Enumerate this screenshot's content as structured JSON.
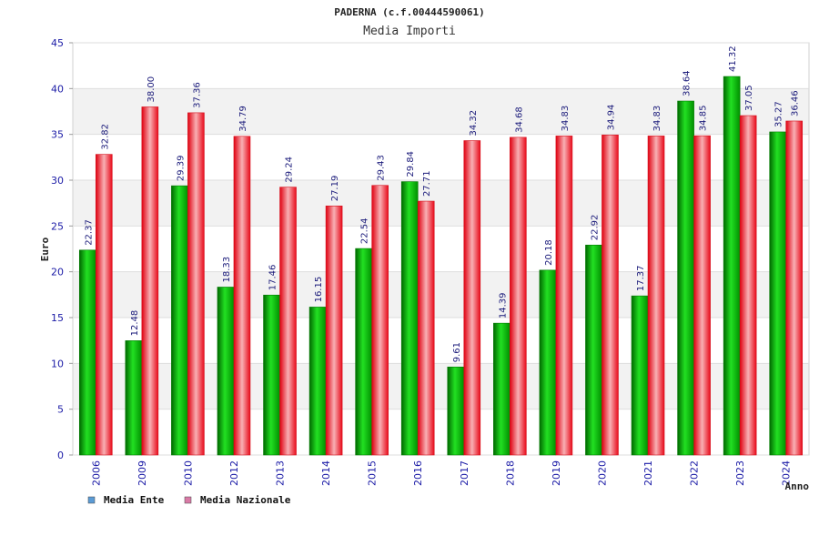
{
  "chart_data": {
    "type": "bar",
    "title": "PADERNA (c.f.00444590061)",
    "subtitle": "Media Importi",
    "xlabel": "Anno",
    "ylabel": "Euro",
    "ylim": [
      0,
      45
    ],
    "yticks": [
      0,
      5,
      10,
      15,
      20,
      25,
      30,
      35,
      40,
      45
    ],
    "grid": true,
    "legend_position": "bottom-left",
    "categories": [
      "2006",
      "2009",
      "2010",
      "2012",
      "2013",
      "2014",
      "2015",
      "2016",
      "2017",
      "2018",
      "2019",
      "2020",
      "2021",
      "2022",
      "2023",
      "2024"
    ],
    "series": [
      {
        "name": "Media Ente",
        "color": "#00b000",
        "legend_color": "#5b9bd5",
        "values": [
          22.37,
          12.48,
          29.39,
          18.33,
          17.46,
          16.15,
          22.54,
          29.84,
          9.61,
          14.39,
          20.18,
          22.92,
          17.37,
          38.64,
          41.32,
          35.27
        ],
        "labels": [
          "22.37",
          "12.48",
          "29.39",
          "18.33",
          "17.46",
          "16.15",
          "22.54",
          "29.84",
          "9.61",
          "14.39",
          "20.18",
          "22.92",
          "17.37",
          "38.64",
          "41.32",
          "35.27"
        ]
      },
      {
        "name": "Media Nazionale",
        "color": "#e8202a",
        "legend_color": "#d97aa6",
        "values": [
          32.82,
          38.0,
          37.36,
          34.79,
          29.24,
          27.19,
          29.43,
          27.71,
          34.32,
          34.68,
          34.83,
          34.94,
          34.83,
          34.85,
          37.05,
          36.46
        ],
        "labels": [
          "32.82",
          "38.00",
          "37.36",
          "34.79",
          "29.24",
          "27.19",
          "29.43",
          "27.71",
          "34.32",
          "34.68",
          "34.83",
          "34.94",
          "34.83",
          "34.85",
          "37.05",
          "36.46"
        ]
      }
    ]
  }
}
